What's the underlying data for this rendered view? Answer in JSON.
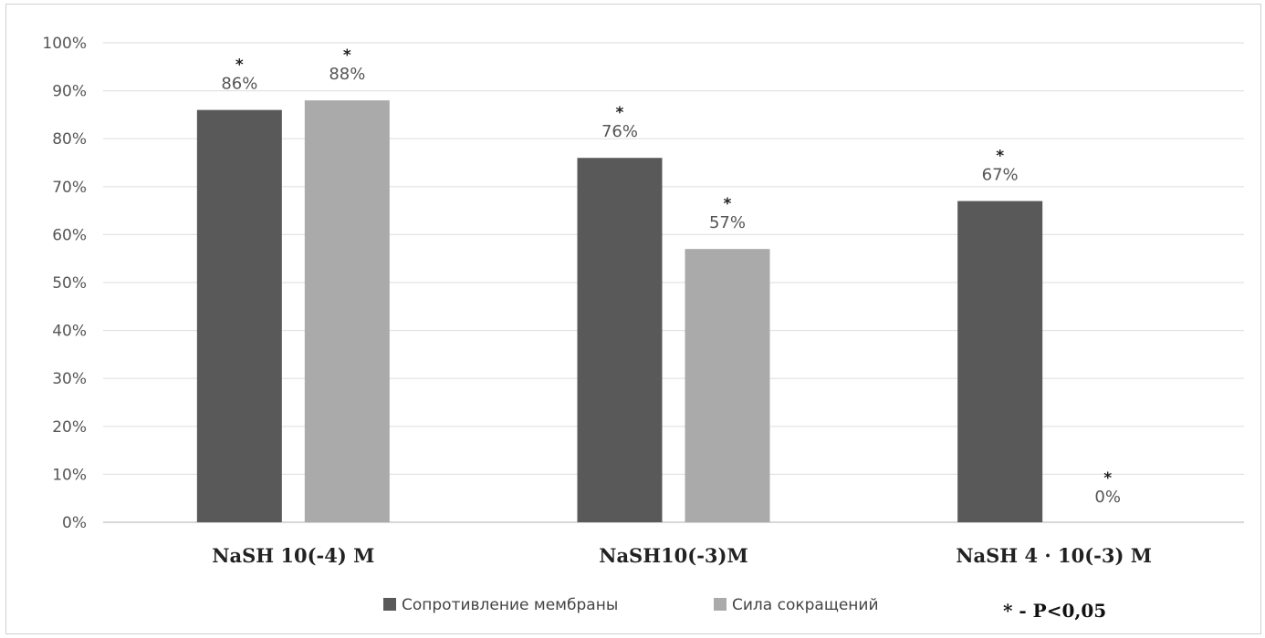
{
  "chart_data": {
    "type": "bar",
    "categories": [
      "NaSH 10(-4) M",
      "NaSH10(-3)M",
      "NaSH 4 · 10(-3) M"
    ],
    "series": [
      {
        "name": "Сопротивление мембраны",
        "values": [
          86,
          76,
          67
        ],
        "color": "#595959"
      },
      {
        "name": "Сила сокращений",
        "values": [
          88,
          57,
          0
        ],
        "color": "#aaaaaa"
      }
    ],
    "data_labels": [
      [
        "86%",
        "76%",
        "67%"
      ],
      [
        "88%",
        "57%",
        "0%"
      ]
    ],
    "significance_marker": "*",
    "ylim": [
      0,
      100
    ],
    "yticks": [
      "0%",
      "10%",
      "20%",
      "30%",
      "40%",
      "50%",
      "60%",
      "70%",
      "80%",
      "90%",
      "100%"
    ],
    "grid": true,
    "legend_position": "bottom",
    "annotation": "* - P<0,05"
  }
}
